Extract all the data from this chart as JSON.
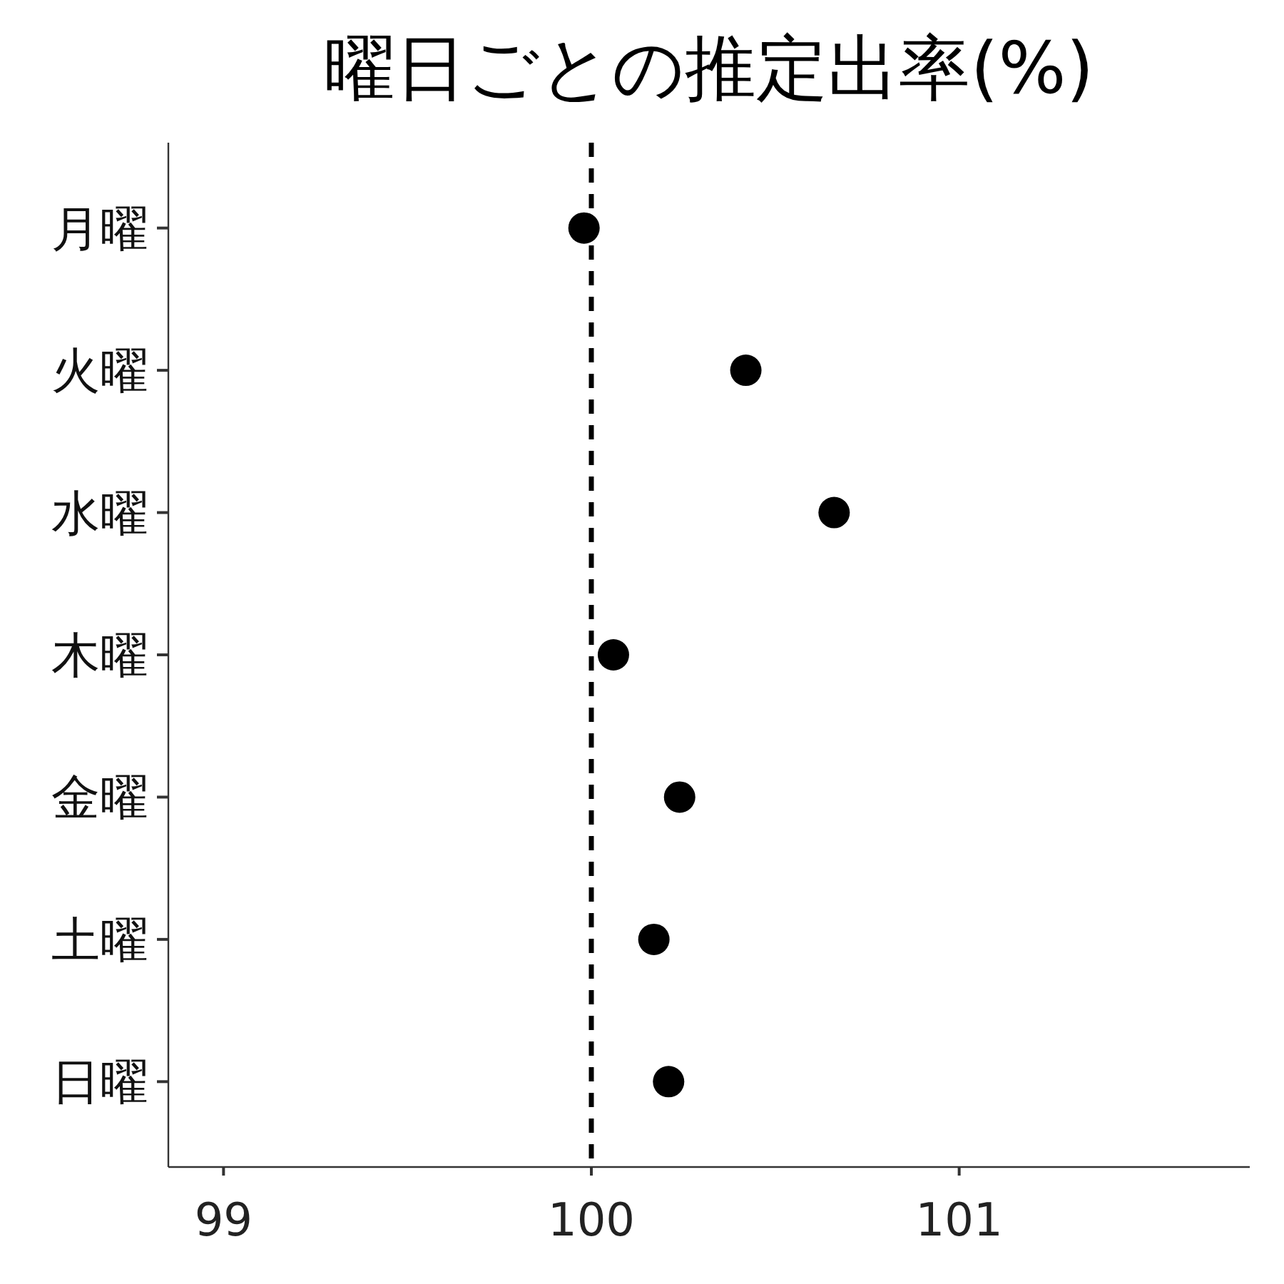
{
  "chart_data": {
    "type": "scatter",
    "orientation": "horizontal",
    "title": "曜日ごとの推定出率(%)",
    "categories": [
      "月曜",
      "火曜",
      "水曜",
      "木曜",
      "金曜",
      "土曜",
      "日曜"
    ],
    "values": [
      99.98,
      100.42,
      100.66,
      100.06,
      100.24,
      100.17,
      100.21
    ],
    "color": "#000000",
    "marker": "circle",
    "grid": false,
    "xlim": [
      98.85,
      101.79
    ],
    "xticks": [
      99,
      100,
      101
    ],
    "ref_lines": [
      {
        "axis": "x",
        "value": 100,
        "color": "#000000",
        "line_style": "dashed"
      }
    ]
  }
}
